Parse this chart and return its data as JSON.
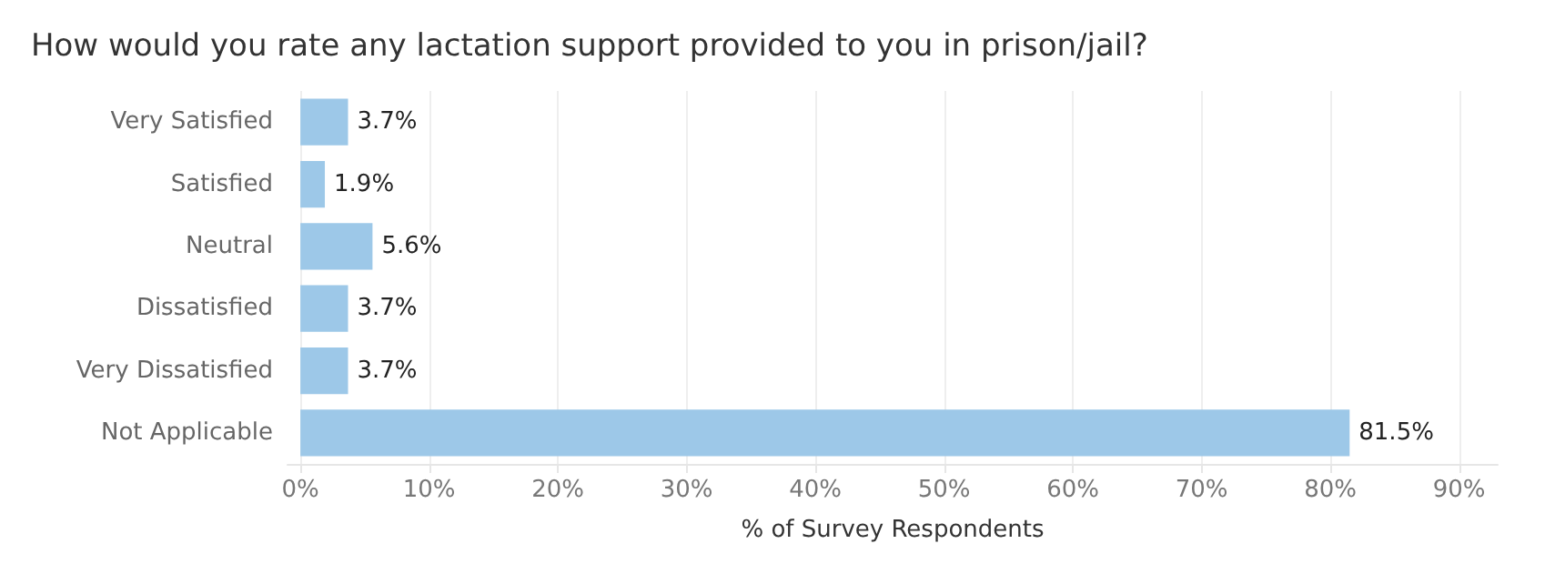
{
  "chart_data": {
    "type": "bar",
    "orientation": "horizontal",
    "title": "How would you rate any lactation support provided to you in prison/jail?",
    "xlabel": "% of Survey Respondents",
    "categories": [
      "Very Satisfied",
      "Satisfied",
      "Neutral",
      "Dissatisfied",
      "Very Dissatisfied",
      "Not Applicable"
    ],
    "values": [
      3.7,
      1.9,
      5.6,
      3.7,
      3.7,
      81.5
    ],
    "value_labels": [
      "3.7%",
      "1.9%",
      "5.6%",
      "3.7%",
      "3.7%",
      "81.5%"
    ],
    "color": "#9dc8e8",
    "xlim": [
      -1,
      93
    ],
    "xticks": [
      {
        "value": 0,
        "label": "0%"
      },
      {
        "value": 10,
        "label": "10%"
      },
      {
        "value": 20,
        "label": "20%"
      },
      {
        "value": 30,
        "label": "30%"
      },
      {
        "value": 40,
        "label": "40%"
      },
      {
        "value": 50,
        "label": "50%"
      },
      {
        "value": 60,
        "label": "60%"
      },
      {
        "value": 70,
        "label": "70%"
      },
      {
        "value": 80,
        "label": "80%"
      },
      {
        "value": 90,
        "label": "90%"
      }
    ],
    "grid": "x"
  }
}
